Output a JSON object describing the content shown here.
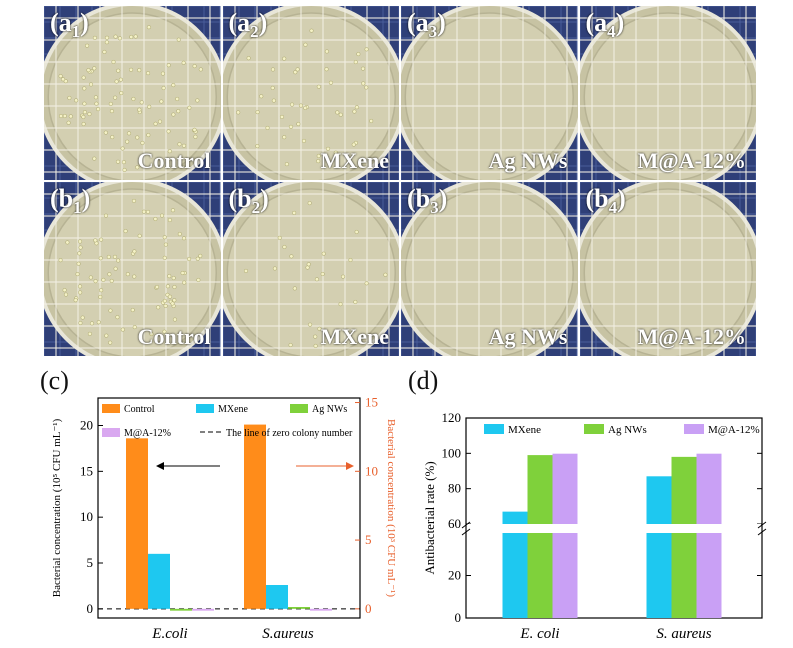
{
  "photos": {
    "rowA": [
      {
        "label": "a",
        "sub": "1",
        "name": "Control",
        "colonies": 90
      },
      {
        "label": "a",
        "sub": "2",
        "name": "MXene",
        "colonies": 45
      },
      {
        "label": "a",
        "sub": "3",
        "name": "Ag NWs",
        "colonies": 0
      },
      {
        "label": "a",
        "sub": "4",
        "name": "M@A-12%",
        "colonies": 0
      }
    ],
    "rowB": [
      {
        "label": "b",
        "sub": "1",
        "name": "Control",
        "colonies": 85
      },
      {
        "label": "b",
        "sub": "2",
        "name": "MXene",
        "colonies": 25
      },
      {
        "label": "b",
        "sub": "3",
        "name": "Ag NWs",
        "colonies": 0
      },
      {
        "label": "b",
        "sub": "4",
        "name": "M@A-12%",
        "colonies": 0
      }
    ]
  },
  "panel_c": {
    "letter": "(c)"
  },
  "panel_d": {
    "letter": "(d)"
  },
  "chart_data": [
    {
      "type": "bar",
      "categories": [
        "E.coli",
        "S.aureus"
      ],
      "series": [
        {
          "name": "Control",
          "values": [
            18.6,
            20.1
          ],
          "color": "#ff8c1a"
        },
        {
          "name": "MXene",
          "values": [
            6.0,
            2.6
          ],
          "color": "#1ec8f0"
        },
        {
          "name": "Ag NWs",
          "values": [
            -0.2,
            0.2
          ],
          "color": "#7fd13b"
        },
        {
          "name": "M@A-12%",
          "values": [
            -0.2,
            -0.2
          ],
          "color": "#d9a8f0"
        }
      ],
      "reference_line": {
        "name": "The line of zero colony number",
        "value": 0
      },
      "ylabel_left": "Bacterial concentration (10⁵ CFU mL⁻¹)",
      "ylabel_right": "Bacterial concentration (10³ CFU mL⁻¹)",
      "ylim": [
        -1,
        23
      ],
      "yticks_left": [
        "0",
        "5",
        "10",
        "15",
        "20"
      ],
      "yticks_right": [
        "0",
        "5",
        "10",
        "15"
      ],
      "right_axis_color": "#e8602c"
    },
    {
      "type": "bar",
      "categories": [
        "E. coli",
        "S. aureus"
      ],
      "series": [
        {
          "name": "MXene",
          "values": [
            67,
            87
          ],
          "color": "#1ec8f0"
        },
        {
          "name": "Ag NWs",
          "values": [
            99,
            98
          ],
          "color": "#7fd13b"
        },
        {
          "name": "M@A-12%",
          "values": [
            99.8,
            99.8
          ],
          "color": "#c9a0f5"
        }
      ],
      "ylabel": "Antibacterial rate (%)",
      "ylim": [
        0,
        120
      ],
      "axis_break": [
        40,
        60
      ],
      "yticks": [
        "0",
        "20",
        "60",
        "80",
        "100",
        "120"
      ]
    }
  ]
}
